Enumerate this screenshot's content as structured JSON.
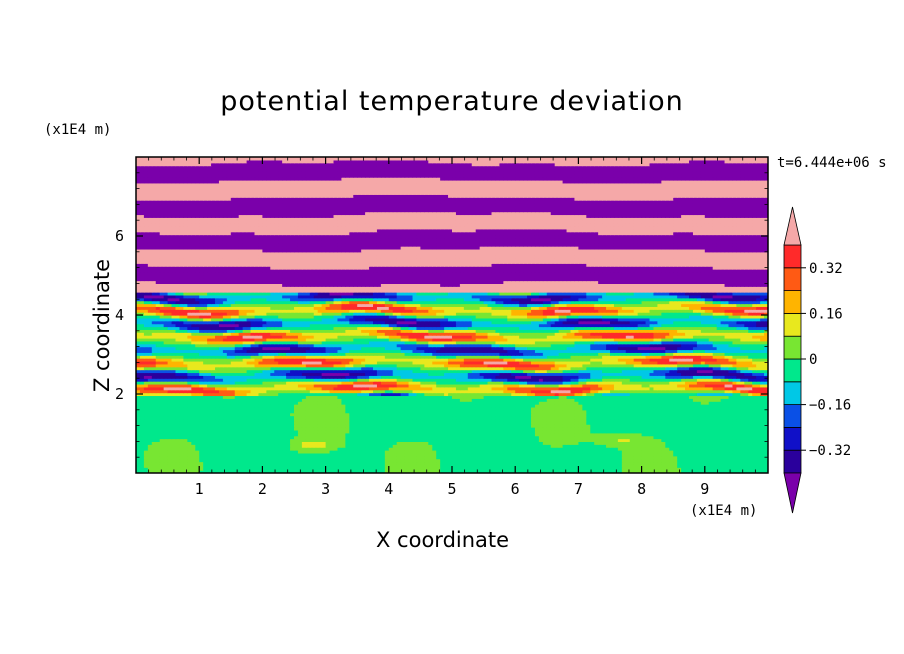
{
  "chart_data": {
    "type": "heatmap",
    "title": "potential temperature deviation",
    "xlabel": "X coordinate",
    "ylabel": "Z coordinate",
    "x_unit": "(x1E4 m)",
    "y_unit": "(x1E4 m)",
    "time_label": "t=6.444e+06 s",
    "xlim": [
      0,
      10
    ],
    "ylim": [
      0,
      8
    ],
    "x_ticks": [
      "1",
      "2",
      "3",
      "4",
      "5",
      "6",
      "7",
      "8",
      "9"
    ],
    "y_ticks": [
      "2",
      "4",
      "6"
    ],
    "colorbar": {
      "levels": [
        -0.4,
        -0.32,
        -0.24,
        -0.16,
        -0.08,
        0,
        0.08,
        0.16,
        0.24,
        0.32,
        0.4
      ],
      "tick_labels": [
        "0.32",
        "0.16",
        "0",
        "−0.16",
        "−0.32"
      ],
      "colors_low_to_high": [
        "#7a00aa",
        "#2a009c",
        "#1010c8",
        "#0a50e6",
        "#00c8e6",
        "#00e88c",
        "#78e632",
        "#e8e81e",
        "#ffb400",
        "#ff5a14",
        "#ff2a2a"
      ],
      "over_color": "#f5a8a8",
      "under_color": "#7a00aa"
    },
    "fields": {
      "lower_layer": {
        "z_range": [
          0,
          2
        ],
        "dominant_value": -0.04,
        "patches": [
          0.04,
          0.12
        ]
      },
      "mixing_layer": {
        "z_range": [
          2,
          4.5
        ],
        "value_range": [
          -0.4,
          0.4
        ]
      },
      "upper_layer": {
        "z_range": [
          4.5,
          8
        ],
        "alternating_values": [
          0.44,
          -0.44
        ]
      }
    }
  }
}
